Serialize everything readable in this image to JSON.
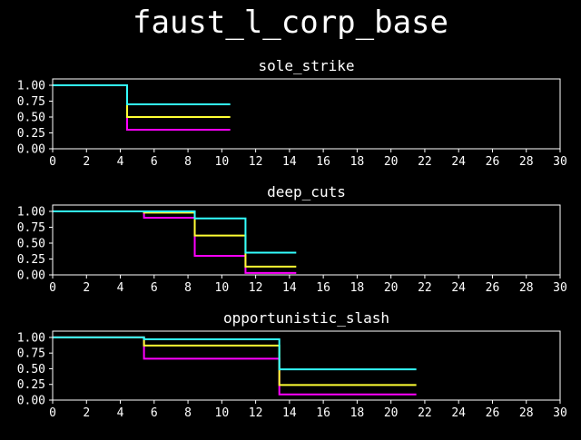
{
  "title": "faust_l_corp_base",
  "colors": {
    "background": "#000000",
    "foreground": "#ffffff",
    "magenta": "#ff00ff",
    "yellow": "#ffff33",
    "cyan": "#33ffff"
  },
  "chart_data": [
    {
      "type": "line",
      "step": "post",
      "title": "sole_strike",
      "xlim": [
        0,
        30
      ],
      "ylim": [
        0,
        1.1
      ],
      "xticks": [
        "0",
        "2",
        "4",
        "6",
        "8",
        "10",
        "12",
        "14",
        "16",
        "18",
        "20",
        "22",
        "24",
        "26",
        "28",
        "30"
      ],
      "yticks": [
        "0.00",
        "0.25",
        "0.50",
        "0.75",
        "1.00"
      ],
      "series": [
        {
          "color": "#ff00ff",
          "x": [
            0,
            4.4,
            10.5
          ],
          "y": [
            1.0,
            0.3,
            0.3
          ]
        },
        {
          "color": "#ffff33",
          "x": [
            0,
            4.4,
            10.5
          ],
          "y": [
            1.0,
            0.5,
            0.5
          ]
        },
        {
          "color": "#33ffff",
          "x": [
            0,
            4.4,
            10.5
          ],
          "y": [
            1.0,
            0.7,
            0.7
          ]
        }
      ]
    },
    {
      "type": "line",
      "step": "post",
      "title": "deep_cuts",
      "xlim": [
        0,
        30
      ],
      "ylim": [
        0,
        1.1
      ],
      "xticks": [
        "0",
        "2",
        "4",
        "6",
        "8",
        "10",
        "12",
        "14",
        "16",
        "18",
        "20",
        "22",
        "24",
        "26",
        "28",
        "30"
      ],
      "yticks": [
        "0.00",
        "0.25",
        "0.50",
        "0.75",
        "1.00"
      ],
      "series": [
        {
          "color": "#ff00ff",
          "x": [
            0,
            5.4,
            8.4,
            11.4,
            14.4
          ],
          "y": [
            1.0,
            0.9,
            0.3,
            0.03,
            0.03
          ]
        },
        {
          "color": "#ffff33",
          "x": [
            0,
            5.4,
            8.4,
            11.4,
            14.4
          ],
          "y": [
            1.0,
            0.98,
            0.62,
            0.13,
            0.13
          ]
        },
        {
          "color": "#33ffff",
          "x": [
            0,
            8.4,
            11.4,
            14.4
          ],
          "y": [
            1.0,
            0.89,
            0.35,
            0.35
          ]
        }
      ]
    },
    {
      "type": "line",
      "step": "post",
      "title": "opportunistic_slash",
      "xlim": [
        0,
        30
      ],
      "ylim": [
        0,
        1.1
      ],
      "xticks": [
        "0",
        "2",
        "4",
        "6",
        "8",
        "10",
        "12",
        "14",
        "16",
        "18",
        "20",
        "22",
        "24",
        "26",
        "28",
        "30"
      ],
      "yticks": [
        "0.00",
        "0.25",
        "0.50",
        "0.75",
        "1.00"
      ],
      "series": [
        {
          "color": "#ff00ff",
          "x": [
            0,
            5.4,
            13.4,
            21.5
          ],
          "y": [
            1.0,
            0.66,
            0.09,
            0.09
          ]
        },
        {
          "color": "#ffff33",
          "x": [
            0,
            5.4,
            13.4,
            21.5
          ],
          "y": [
            1.0,
            0.87,
            0.24,
            0.24
          ]
        },
        {
          "color": "#33ffff",
          "x": [
            0,
            5.4,
            13.4,
            21.5
          ],
          "y": [
            1.0,
            0.97,
            0.49,
            0.49
          ]
        }
      ]
    }
  ]
}
